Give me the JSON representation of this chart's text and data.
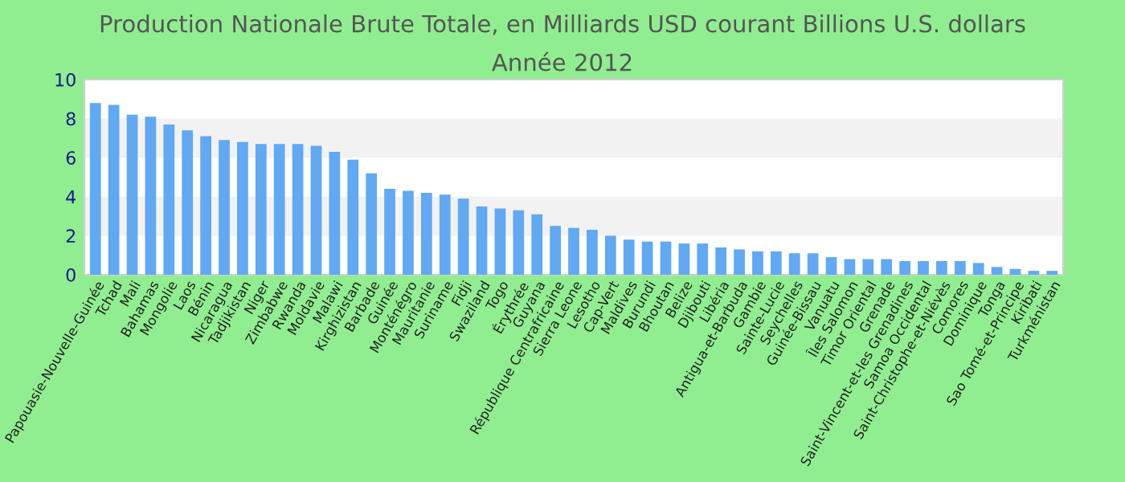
{
  "chart_data": {
    "type": "bar",
    "title": "Production Nationale Brute Totale, en Milliards USD courant Billions U.S. dollars",
    "subtitle": "Année 2012",
    "categories": [
      "Papouasie-Nouvelle-Guinée",
      "Tchad",
      "Mali",
      "Bahamas",
      "Mongolie",
      "Laos",
      "Bénin",
      "Nicaragua",
      "Tadjikistan",
      "Niger",
      "Zimbabwe",
      "Rwanda",
      "Moldavie",
      "Malawi",
      "Kirghizistan",
      "Barbade",
      "Guinée",
      "Monténégro",
      "Mauritanie",
      "Suriname",
      "Fidji",
      "Swaziland",
      "Togo",
      "Érythrée",
      "Guyana",
      "République Centrafricaine",
      "Sierra Leone",
      "Lesotho",
      "Cap-Vert",
      "Maldives",
      "Burundi",
      "Bhoutan",
      "Belize",
      "Djibouti",
      "Libéria",
      "Antigua-et-Barbuda",
      "Gambie",
      "Sainte-Lucie",
      "Seychelles",
      "Guinée-Bissau",
      "Vanuatu",
      "Îles Salomon",
      "Timor Oriental",
      "Grenade",
      "Saint-Vincent-et-les Grenadines",
      "Samoa Occidental",
      "Saint-Christophe-et-Niévès",
      "Comores",
      "Dominique",
      "Tonga",
      "Sao Tomé-et-Principe",
      "Kiribati",
      "Turkménistan"
    ],
    "values": [
      8.8,
      8.7,
      8.2,
      8.1,
      7.7,
      7.4,
      7.1,
      6.9,
      6.8,
      6.7,
      6.7,
      6.7,
      6.6,
      6.3,
      5.9,
      5.2,
      4.4,
      4.3,
      4.2,
      4.1,
      3.9,
      3.5,
      3.4,
      3.3,
      3.1,
      2.5,
      2.4,
      2.3,
      2.0,
      1.8,
      1.7,
      1.7,
      1.6,
      1.6,
      1.4,
      1.3,
      1.2,
      1.2,
      1.1,
      1.1,
      0.9,
      0.8,
      0.8,
      0.8,
      0.7,
      0.7,
      0.7,
      0.7,
      0.6,
      0.4,
      0.3,
      0.2,
      0.2
    ],
    "color": "#61a9f2",
    "ylim": [
      0,
      10
    ],
    "yticks": [
      0,
      2,
      4,
      6,
      8,
      10
    ],
    "grid": false,
    "legend": false,
    "bands": [
      {
        "axis": "y",
        "from": 2,
        "to": 4,
        "label": null,
        "color": "#f2f2f2"
      },
      {
        "axis": "y",
        "from": 6,
        "to": 8,
        "label": null,
        "color": "#f2f2f2"
      }
    ]
  }
}
